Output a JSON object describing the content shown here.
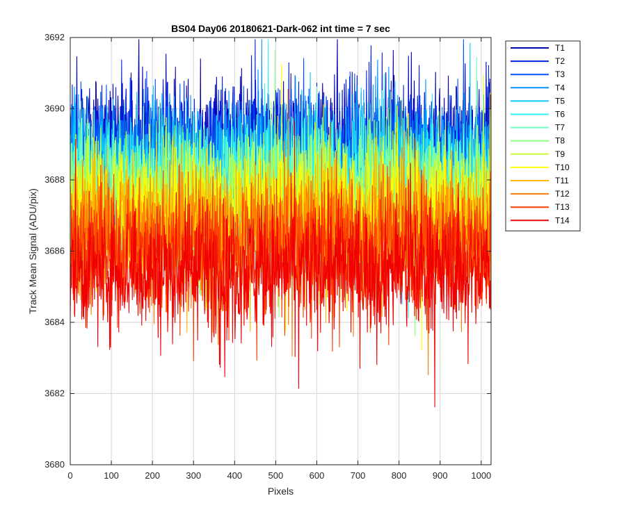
{
  "chart_data": {
    "type": "line",
    "title": "BS04 Day06 20180621-Dark-062 int time = 7 sec",
    "xlabel": "Pixels",
    "ylabel": "Track Mean Signal (ADU/pix)",
    "xlim": [
      0,
      1024
    ],
    "ylim": [
      3680,
      3692
    ],
    "xticks": [
      0,
      100,
      200,
      300,
      400,
      500,
      600,
      700,
      800,
      900,
      1000
    ],
    "yticks": [
      3680,
      3682,
      3684,
      3686,
      3688,
      3690,
      3692
    ],
    "grid": true,
    "legend_position": "outside-top-right",
    "x_points": 1024,
    "series": [
      {
        "name": "T1",
        "color": "#0000b3",
        "mean": 3689.0,
        "spread": 1.0
      },
      {
        "name": "T2",
        "color": "#0022dd",
        "mean": 3688.8,
        "spread": 1.0
      },
      {
        "name": "T3",
        "color": "#0050ff",
        "mean": 3688.6,
        "spread": 1.0
      },
      {
        "name": "T4",
        "color": "#0090ff",
        "mean": 3688.4,
        "spread": 1.0
      },
      {
        "name": "T5",
        "color": "#10c8ff",
        "mean": 3688.2,
        "spread": 1.0
      },
      {
        "name": "T6",
        "color": "#30f0f0",
        "mean": 3688.0,
        "spread": 1.0
      },
      {
        "name": "T7",
        "color": "#70ffc0",
        "mean": 3687.8,
        "spread": 1.0
      },
      {
        "name": "T8",
        "color": "#90ff80",
        "mean": 3687.5,
        "spread": 1.0
      },
      {
        "name": "T9",
        "color": "#c8ff30",
        "mean": 3687.3,
        "spread": 1.0
      },
      {
        "name": "T10",
        "color": "#ffff00",
        "mean": 3687.1,
        "spread": 1.0
      },
      {
        "name": "T11",
        "color": "#ffb800",
        "mean": 3686.8,
        "spread": 1.0
      },
      {
        "name": "T12",
        "color": "#ff7a00",
        "mean": 3686.4,
        "spread": 1.0
      },
      {
        "name": "T13",
        "color": "#ff3800",
        "mean": 3686.0,
        "spread": 1.0
      },
      {
        "name": "T14",
        "color": "#f00000",
        "mean": 3685.5,
        "spread": 1.0
      }
    ]
  }
}
